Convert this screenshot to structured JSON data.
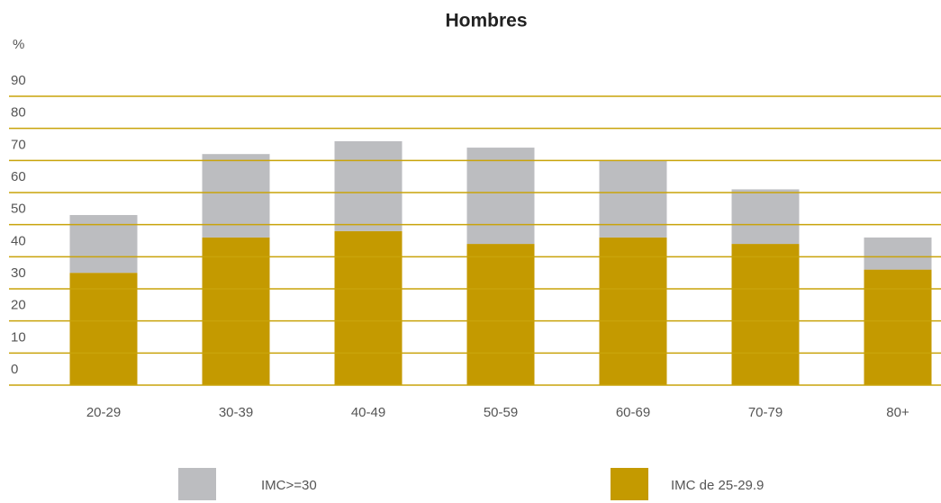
{
  "chart_data": {
    "type": "stacked_bar",
    "title": "Hombres",
    "y_label": "%",
    "categories": [
      "20-29",
      "30-39",
      "40-49",
      "50-59",
      "60-69",
      "70-79",
      "80+"
    ],
    "series": [
      {
        "name": "IMC de 25-29.9",
        "color": "#c49a00",
        "values": [
          35,
          46,
          48,
          44,
          46,
          44,
          36
        ]
      },
      {
        "name": "IMC>=30",
        "color": "#bcbdc0",
        "values": [
          18,
          26,
          28,
          30,
          24,
          17,
          10
        ]
      }
    ],
    "ylim": [
      0,
      90
    ],
    "yticks": [
      0,
      10,
      20,
      30,
      40,
      50,
      60,
      70,
      80,
      90
    ],
    "grid": true,
    "grid_color": "#c9a30a"
  }
}
